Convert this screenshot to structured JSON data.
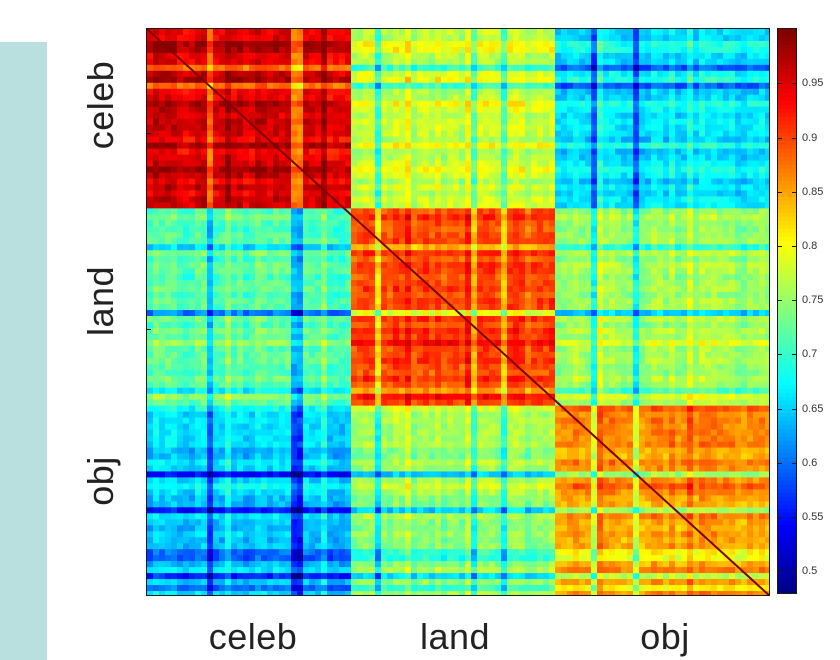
{
  "chart_data": {
    "type": "heatmap",
    "title": "",
    "categories": [
      "celeb",
      "land",
      "obj"
    ],
    "colorbar": {
      "colormap": "jet",
      "range": [
        0.48,
        1.0
      ],
      "tick_values": [
        0.5,
        0.55,
        0.6,
        0.65,
        0.7,
        0.75,
        0.8,
        0.85,
        0.9,
        0.95
      ],
      "tick_labels": [
        "0.5",
        "0.55",
        "0.6",
        "0.65",
        "0.7",
        "0.75",
        "0.8",
        "0.85",
        "0.9",
        "0.95"
      ]
    },
    "block_mean_similarity": [
      [
        0.95,
        0.77,
        0.66
      ],
      [
        0.72,
        0.9,
        0.76
      ],
      [
        0.65,
        0.75,
        0.86
      ]
    ],
    "diagonal_value": 1.0,
    "diagonal_color": "#7f0000",
    "background_panel_color": "#b9dfdf"
  }
}
